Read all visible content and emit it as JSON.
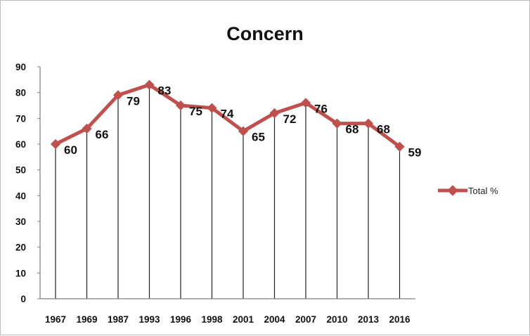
{
  "chart_data": {
    "type": "line",
    "title": "Concern",
    "xlabel": "",
    "ylabel": "",
    "categories": [
      "1967",
      "1969",
      "1987",
      "1993",
      "1996",
      "1998",
      "2001",
      "2004",
      "2007",
      "2010",
      "2013",
      "2016"
    ],
    "series": [
      {
        "name": "Total %",
        "values": [
          60,
          66,
          79,
          83,
          75,
          74,
          65,
          72,
          76,
          68,
          68,
          59
        ],
        "data_labels": [
          "60",
          "66",
          "79",
          "83",
          "75",
          "74",
          "65",
          "72",
          "76",
          "68",
          "68",
          "59"
        ],
        "color": "#c0504d"
      }
    ],
    "ylim": [
      0,
      90
    ],
    "yticks": [
      "0",
      "10",
      "20",
      "30",
      "40",
      "50",
      "60",
      "70",
      "80",
      "90"
    ],
    "grid": false,
    "drop_lines": true,
    "legend_position": "right"
  }
}
